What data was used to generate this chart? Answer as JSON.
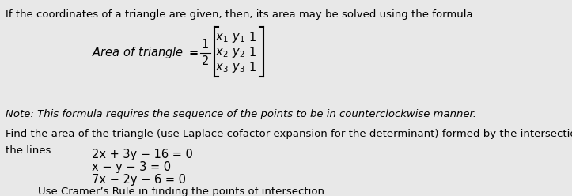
{
  "bg_color": "#e8e8e8",
  "text_color": "#000000",
  "line1": "If the coordinates of a triangle are given, then, its area may be solved using the formula",
  "formula_label": "Area of triangle = ",
  "matrix_rows": [
    [
      "x₁",
      "y₁",
      "1"
    ],
    [
      "x₂",
      "y₂",
      "1"
    ],
    [
      "x₃",
      "y₃",
      "1"
    ]
  ],
  "fraction": "1/2",
  "note": "Note: This formula requires the sequence of the points to be in counterclockwise manner.",
  "line3": "Find the area of the triangle (use Laplace cofactor expansion for the determinant) formed by the intersections of",
  "line4": "the lines:",
  "eq1": "2x + 3y − 16 = 0",
  "eq2": "x − y − 3 = 0",
  "eq3": "7x − 2y − 6 = 0",
  "cramer": "Use Cramer’s Rule in finding the points of intersection.",
  "font_size_main": 9.5,
  "font_size_formula": 10.5,
  "font_size_note": 9.5,
  "font_size_eq": 10.5
}
